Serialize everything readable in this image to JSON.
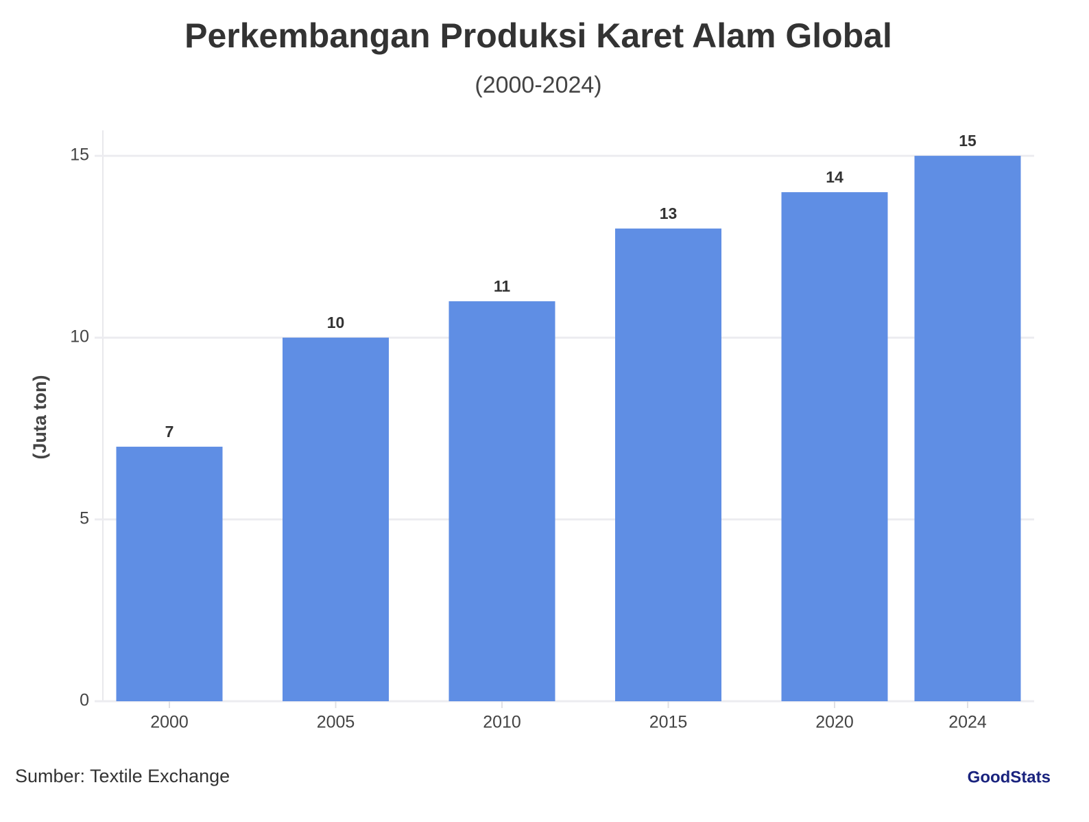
{
  "chart_data": {
    "type": "bar",
    "title": "Perkembangan Produksi Karet Alam Global",
    "subtitle": "(2000-2024)",
    "y_label": "(Juta ton)",
    "source": "Sumber: Textile Exchange",
    "logo": "GoodStats",
    "x": [
      2000,
      2005,
      2010,
      2015,
      2020,
      2024
    ],
    "values": [
      7,
      10,
      11,
      13,
      14,
      15
    ],
    "color": "#5f8ee4",
    "xlim": [
      1998,
      2026
    ],
    "xticks": [
      2000,
      2005,
      2010,
      2015,
      2020,
      2024
    ],
    "ylim": [
      0,
      15.7
    ],
    "yticks": [
      0,
      5,
      10,
      15
    ],
    "grid": true
  }
}
